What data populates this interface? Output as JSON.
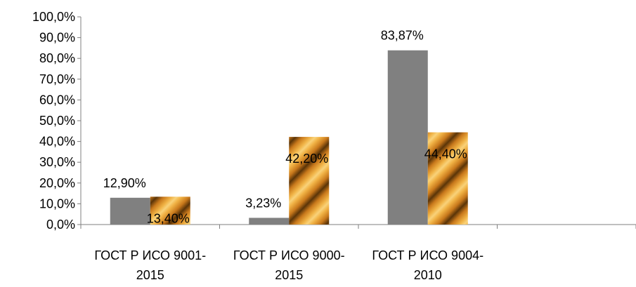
{
  "chart_data": {
    "type": "bar",
    "title": "",
    "xlabel": "",
    "ylabel": "",
    "categories": [
      "ГОСТ Р ИСО 9001-2015",
      "ГОСТ Р ИСО 9000-2015",
      "ГОСТ Р ИСО 9004-2010"
    ],
    "category_label_lines": [
      [
        "ГОСТ Р ИСО 9001-",
        "2015"
      ],
      [
        "ГОСТ Р ИСО 9000-",
        "2015"
      ],
      [
        "ГОСТ Р ИСО 9004-",
        "2010"
      ]
    ],
    "series": [
      {
        "values": [
          12.9,
          3.23,
          83.87
        ],
        "data_labels": [
          "12,90%",
          "3,23%",
          "83,87%"
        ],
        "color": "#808080",
        "fill": "solid"
      },
      {
        "values": [
          13.4,
          42.2,
          44.4
        ],
        "data_labels": [
          "13,40%",
          "42,20%",
          "44,40%"
        ],
        "color": "#E8A33A",
        "fill": "diagonal-gradient-stripes"
      }
    ],
    "ylim": [
      0,
      100
    ],
    "yticks": [
      0,
      10,
      20,
      30,
      40,
      50,
      60,
      70,
      80,
      90,
      100
    ],
    "ytick_labels": [
      "0,0%",
      "10,0%",
      "20,0%",
      "30,0%",
      "40,0%",
      "50,0%",
      "60,0%",
      "70,0%",
      "80,0%",
      "90,0%",
      "100,0%"
    ],
    "grid": false,
    "legend": "none",
    "extra_empty_category_slot": true
  }
}
